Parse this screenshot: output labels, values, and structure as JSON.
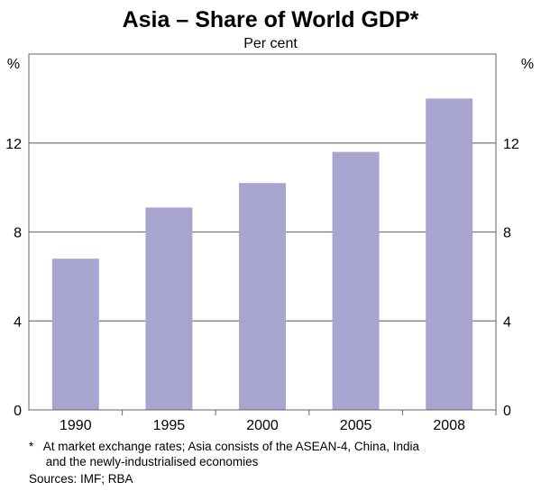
{
  "chart_data": {
    "type": "bar",
    "title": "Asia – Share of World GDP*",
    "subtitle": "Per cent",
    "ylabel_left": "%",
    "ylabel_right": "%",
    "categories": [
      "1990",
      "1995",
      "2000",
      "2005",
      "2008"
    ],
    "values": [
      6.8,
      9.1,
      10.2,
      11.6,
      14.0
    ],
    "ylim": [
      0,
      16
    ],
    "yticks": [
      0,
      4,
      8,
      12
    ],
    "grid": true,
    "bar_color": "#a8a6d0",
    "footnote_lines": [
      "*   At market exchange rates; Asia consists of the ASEAN-4, China, India",
      "     and the newly-industrialised economies"
    ],
    "sources": "Sources: IMF; RBA"
  }
}
